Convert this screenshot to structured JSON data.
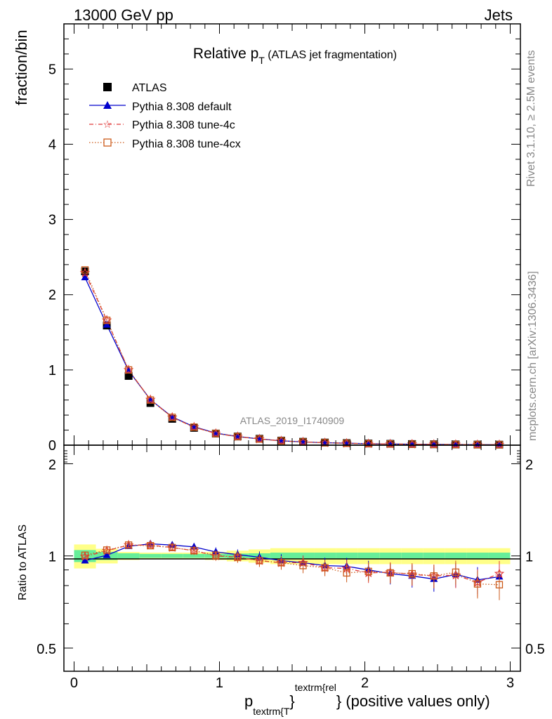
{
  "header": {
    "energy_label": "13000 GeV pp",
    "process_label": "Jets",
    "title_main": "Relative p",
    "title_sub": "T",
    "title_rest": " (ATLAS jet fragmentation)",
    "rivet_label": "Rivet 3.1.10, ≥ 2.5M events",
    "site_label": "mcplots.cern.ch [arXiv:1306.3436]",
    "analysis_label": "ATLAS_2019_I1740909"
  },
  "axes": {
    "ylabel_main": "fraction/bin",
    "ylabel_ratio": "Ratio to ATLAS",
    "xlabel_p": "p",
    "xlabel_sub": "textrm{T",
    "xlabel_brace1": "}",
    "xlabel_sup": "textrm{rel",
    "xlabel_brace2": "}",
    "xlabel_rest": " (positive values only)"
  },
  "legend": {
    "atlas": "ATLAS",
    "default": "Pythia 8.308 default",
    "tune4c": "Pythia 8.308 tune-4c",
    "tune4cx": "Pythia 8.308 tune-4cx"
  },
  "colors": {
    "atlas": "#000000",
    "default": "#0000cc",
    "tune4c": "#e03a3a",
    "tune4cx": "#cc5a1a",
    "band_inner": "#66ee99",
    "band_outer": "#ffff88"
  },
  "chart_data": [
    {
      "type": "line",
      "panel": "main",
      "title": "Relative pT (ATLAS jet fragmentation)",
      "ylabel": "fraction/bin",
      "xlim": [
        -0.07,
        3.07
      ],
      "ylim": [
        0,
        5.6
      ],
      "yticks": [
        0,
        1,
        2,
        3,
        4,
        5
      ],
      "xticks": [
        0,
        1,
        2,
        3
      ],
      "x": [
        0.075,
        0.225,
        0.375,
        0.525,
        0.675,
        0.825,
        0.975,
        1.125,
        1.275,
        1.425,
        1.575,
        1.725,
        1.875,
        2.025,
        2.175,
        2.325,
        2.475,
        2.625,
        2.775,
        2.925
      ],
      "series": [
        {
          "name": "ATLAS",
          "values": [
            2.31,
            1.59,
            0.92,
            0.56,
            0.35,
            0.23,
            0.155,
            0.115,
            0.085,
            0.06,
            0.045,
            0.035,
            0.028,
            0.022,
            0.018,
            0.015,
            0.012,
            0.01,
            0.008,
            0.007
          ]
        },
        {
          "name": "Pythia 8.308 default",
          "values": [
            2.23,
            1.6,
            0.99,
            0.605,
            0.375,
            0.245,
            0.16,
            0.115,
            0.083,
            0.058,
            0.043,
            0.033,
            0.026,
            0.02,
            0.016,
            0.013,
            0.01,
            0.0087,
            0.0067,
            0.006
          ]
        },
        {
          "name": "Pythia 8.308 tune-4c",
          "values": [
            2.29,
            1.66,
            1.0,
            0.605,
            0.37,
            0.24,
            0.155,
            0.113,
            0.082,
            0.057,
            0.043,
            0.032,
            0.025,
            0.019,
            0.016,
            0.013,
            0.0103,
            0.0086,
            0.0066,
            0.0061
          ]
        },
        {
          "name": "Pythia 8.308 tune-4cx",
          "values": [
            2.33,
            1.66,
            1.0,
            0.6,
            0.37,
            0.24,
            0.156,
            0.114,
            0.081,
            0.057,
            0.042,
            0.032,
            0.0245,
            0.0196,
            0.016,
            0.013,
            0.0104,
            0.0089,
            0.0065,
            0.0057
          ]
        }
      ]
    },
    {
      "type": "line",
      "panel": "ratio",
      "ylabel": "Ratio to ATLAS",
      "xlabel": "p_{textrm{T}}^{textrm{rel}} (positive values only)",
      "xlim": [
        -0.07,
        3.07
      ],
      "ylim": [
        0.42,
        2.3
      ],
      "yticks": [
        0.5,
        1,
        2
      ],
      "xticks": [
        0,
        1,
        2,
        3
      ],
      "x": [
        0.075,
        0.225,
        0.375,
        0.525,
        0.675,
        0.825,
        0.975,
        1.125,
        1.275,
        1.425,
        1.575,
        1.725,
        1.875,
        2.025,
        2.175,
        2.325,
        2.475,
        2.625,
        2.775,
        2.925
      ],
      "band_inner_halfwidth": [
        0.045,
        0.03,
        0.02,
        0.015,
        0.015,
        0.015,
        0.015,
        0.018,
        0.02,
        0.025,
        0.025,
        0.025,
        0.025,
        0.025,
        0.025,
        0.025,
        0.025,
        0.025,
        0.025,
        0.025
      ],
      "band_outer_halfwidth": [
        0.09,
        0.055,
        0.03,
        0.025,
        0.025,
        0.025,
        0.03,
        0.04,
        0.05,
        0.06,
        0.06,
        0.06,
        0.06,
        0.06,
        0.06,
        0.06,
        0.06,
        0.06,
        0.06,
        0.06
      ],
      "series": [
        {
          "name": "Pythia 8.308 default",
          "values": [
            0.965,
            1.005,
            1.075,
            1.095,
            1.085,
            1.07,
            1.03,
            1.01,
            0.99,
            0.965,
            0.95,
            0.93,
            0.925,
            0.9,
            0.875,
            0.86,
            0.84,
            0.87,
            0.835,
            0.855
          ]
        },
        {
          "name": "Pythia 8.308 tune-4c",
          "values": [
            0.995,
            1.04,
            1.085,
            1.085,
            1.065,
            1.04,
            1.0,
            0.99,
            0.965,
            0.95,
            0.95,
            0.915,
            0.91,
            0.88,
            0.885,
            0.87,
            0.86,
            0.865,
            0.82,
            0.875
          ]
        },
        {
          "name": "Pythia 8.308 tune-4cx",
          "values": [
            1.005,
            1.045,
            1.085,
            1.08,
            1.065,
            1.04,
            1.005,
            0.99,
            0.965,
            0.95,
            0.93,
            0.915,
            0.88,
            0.89,
            0.88,
            0.875,
            0.86,
            0.885,
            0.81,
            0.805
          ]
        }
      ]
    }
  ]
}
